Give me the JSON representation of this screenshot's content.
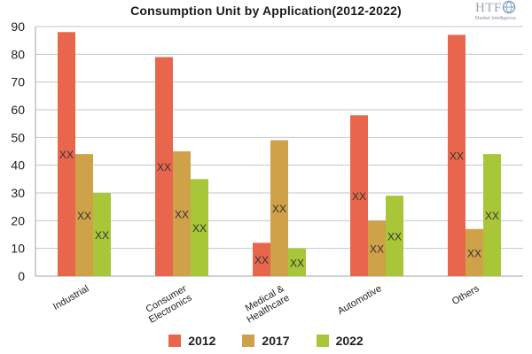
{
  "title": "Consumption Unit by  Application(2012-2022)",
  "logo": {
    "text": "HTF",
    "subtext": "Market Intelligence"
  },
  "chart_data": {
    "type": "bar",
    "title": "Consumption Unit by  Application(2012-2022)",
    "categories": [
      "Industrial",
      "Consumer Electronics",
      "Medical & Healthcare",
      "Automotive",
      "Others"
    ],
    "category_label_lines": [
      [
        "Industrial"
      ],
      [
        "Consumer",
        "Electronics"
      ],
      [
        "Medical &",
        "Healthcare"
      ],
      [
        "Automotive"
      ],
      [
        "Others"
      ]
    ],
    "series": [
      {
        "name": "2012",
        "color": "#e8664c",
        "values": [
          88,
          79,
          12,
          58,
          87
        ]
      },
      {
        "name": "2017",
        "color": "#cfa149",
        "values": [
          44,
          45,
          49,
          20,
          17
        ]
      },
      {
        "name": "2022",
        "color": "#a9c639",
        "values": [
          30,
          35,
          10,
          29,
          44
        ]
      }
    ],
    "data_label": "XX",
    "xlabel": "",
    "ylabel": "",
    "ylim": [
      0,
      90
    ],
    "yticks": [
      0,
      10,
      20,
      30,
      40,
      50,
      60,
      70,
      80,
      90
    ],
    "grid": true,
    "legend_position": "bottom"
  }
}
